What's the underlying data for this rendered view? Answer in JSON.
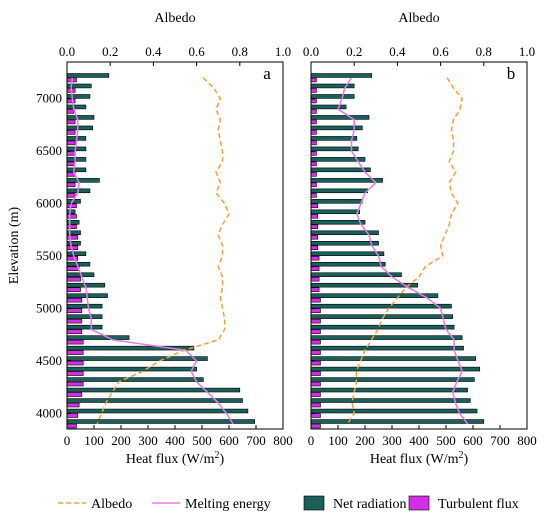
{
  "chart_data": [
    {
      "type": "bar",
      "orientation": "horizontal",
      "panel_label": "a",
      "xlabel": "Heat flux (W/m",
      "xlabel_superscript": "2",
      "xlabel_suffix": ")",
      "top_xlabel": "Albedo",
      "ylabel": "Elevation (m)",
      "xlim": [
        0,
        800
      ],
      "top_xlim": [
        0.0,
        1.0
      ],
      "ylim": [
        3850,
        7350
      ],
      "x_ticks": [
        "0",
        "100",
        "200",
        "300",
        "400",
        "500",
        "600",
        "700",
        "800"
      ],
      "top_ticks": [
        "0.0",
        "0.2",
        "0.4",
        "0.6",
        "0.8",
        "1.0"
      ],
      "y_ticks": [
        "4000",
        "4500",
        "5000",
        "5500",
        "6000",
        "6500",
        "7000"
      ],
      "elevation": [
        7200,
        7100,
        7000,
        6900,
        6800,
        6700,
        6600,
        6500,
        6400,
        6300,
        6200,
        6100,
        6000,
        5900,
        5800,
        5700,
        5600,
        5500,
        5400,
        5300,
        5200,
        5100,
        5000,
        4900,
        4800,
        4700,
        4600,
        4500,
        4400,
        4300,
        4200,
        4100,
        4000,
        3900
      ],
      "series": [
        {
          "name": "Net radiation",
          "color": "#1a5f5a",
          "values": [
            155,
            90,
            85,
            70,
            100,
            95,
            70,
            70,
            70,
            70,
            120,
            85,
            50,
            30,
            45,
            50,
            50,
            70,
            85,
            100,
            140,
            150,
            130,
            130,
            130,
            230,
            470,
            520,
            480,
            505,
            640,
            650,
            670,
            695
          ]
        },
        {
          "name": "Turbulent flux",
          "color": "#d42ee6",
          "values": [
            35,
            30,
            30,
            25,
            30,
            30,
            30,
            30,
            30,
            30,
            30,
            30,
            35,
            35,
            35,
            40,
            40,
            40,
            45,
            50,
            50,
            55,
            55,
            55,
            55,
            60,
            60,
            60,
            60,
            60,
            55,
            45,
            40,
            35
          ]
        },
        {
          "name": "Melting energy",
          "color": "#e07de8",
          "values": [
            20,
            15,
            20,
            25,
            40,
            40,
            35,
            30,
            30,
            25,
            45,
            40,
            15,
            10,
            10,
            10,
            15,
            25,
            40,
            55,
            70,
            75,
            80,
            90,
            90,
            170,
            440,
            480,
            460,
            480,
            520,
            560,
            590,
            615
          ]
        },
        {
          "name": "Albedo",
          "color": "#f0a040",
          "values": [
            0.63,
            0.68,
            0.71,
            0.69,
            0.71,
            0.7,
            0.71,
            0.72,
            0.72,
            0.69,
            0.71,
            0.69,
            0.73,
            0.75,
            0.72,
            0.7,
            0.72,
            0.72,
            0.7,
            0.72,
            0.72,
            0.71,
            0.72,
            0.73,
            0.73,
            0.7,
            0.54,
            0.43,
            0.35,
            0.24,
            0.21,
            0.18,
            0.16,
            0.14
          ]
        }
      ]
    },
    {
      "type": "bar",
      "orientation": "horizontal",
      "panel_label": "b",
      "xlabel": "Heat flux (W/m",
      "xlabel_superscript": "2",
      "xlabel_suffix": ")",
      "top_xlabel": "Albedo",
      "xlim": [
        0,
        800
      ],
      "top_xlim": [
        0.0,
        1.0
      ],
      "ylim": [
        3850,
        7350
      ],
      "x_ticks": [
        "0",
        "100",
        "200",
        "300",
        "400",
        "500",
        "600",
        "700",
        "800"
      ],
      "top_ticks": [
        "0.0",
        "0.2",
        "0.4",
        "0.6",
        "0.8",
        "1.0"
      ],
      "elevation": [
        7200,
        7100,
        7000,
        6900,
        6800,
        6700,
        6600,
        6500,
        6400,
        6300,
        6200,
        6100,
        6000,
        5900,
        5800,
        5700,
        5600,
        5500,
        5400,
        5300,
        5200,
        5100,
        5000,
        4900,
        4800,
        4700,
        4600,
        4500,
        4400,
        4300,
        4200,
        4100,
        4000,
        3900
      ],
      "series": [
        {
          "name": "Net radiation",
          "color": "#1a5f5a",
          "values": [
            225,
            160,
            160,
            130,
            215,
            190,
            170,
            175,
            200,
            220,
            265,
            210,
            190,
            180,
            200,
            250,
            250,
            270,
            275,
            335,
            395,
            470,
            520,
            525,
            530,
            560,
            565,
            610,
            625,
            605,
            580,
            590,
            615,
            640
          ]
        },
        {
          "name": "Turbulent flux",
          "color": "#d42ee6",
          "values": [
            20,
            20,
            20,
            20,
            20,
            20,
            20,
            20,
            20,
            20,
            20,
            20,
            25,
            25,
            25,
            25,
            25,
            30,
            30,
            30,
            30,
            35,
            35,
            35,
            35,
            35,
            35,
            35,
            35,
            35,
            35,
            35,
            35,
            35
          ]
        },
        {
          "name": "Melting energy",
          "color": "#e07de8",
          "values": [
            150,
            125,
            115,
            100,
            160,
            160,
            150,
            150,
            175,
            200,
            240,
            200,
            185,
            170,
            185,
            215,
            225,
            250,
            260,
            300,
            360,
            430,
            480,
            490,
            500,
            530,
            530,
            545,
            560,
            540,
            525,
            535,
            550,
            580
          ]
        },
        {
          "name": "Albedo",
          "color": "#f0a040",
          "values": [
            0.63,
            0.66,
            0.7,
            0.69,
            0.66,
            0.65,
            0.66,
            0.66,
            0.64,
            0.67,
            0.64,
            0.65,
            0.68,
            0.65,
            0.64,
            0.62,
            0.6,
            0.61,
            0.53,
            0.5,
            0.44,
            0.4,
            0.36,
            0.33,
            0.31,
            0.28,
            0.25,
            0.23,
            0.21,
            0.21,
            0.2,
            0.19,
            0.2,
            0.17
          ]
        }
      ]
    }
  ],
  "legend": {
    "items": [
      {
        "label": "Albedo",
        "kind": "dash",
        "color": "#f0a040"
      },
      {
        "label": "Melting energy",
        "kind": "line",
        "color": "#e07de8"
      },
      {
        "label": "Net radiation",
        "kind": "box",
        "color": "#1a5f5a"
      },
      {
        "label": "Turbulent flux",
        "kind": "box",
        "color": "#d42ee6"
      }
    ]
  }
}
